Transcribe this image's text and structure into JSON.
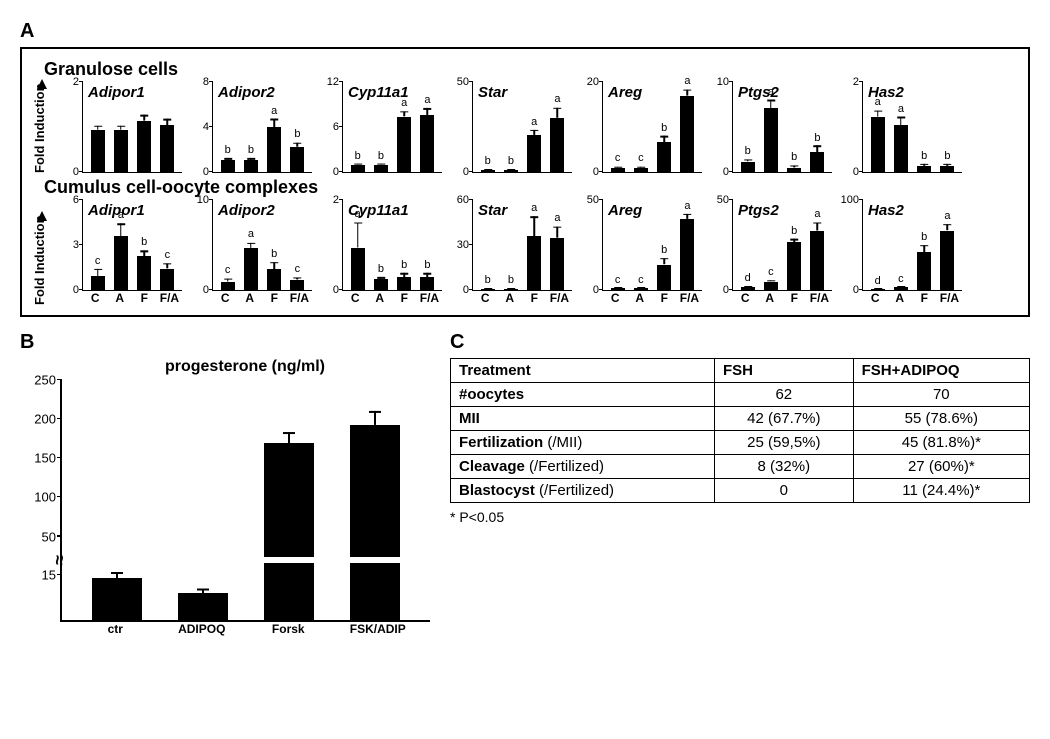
{
  "colors": {
    "bar": "#000000",
    "border": "#000000",
    "background": "#ffffff",
    "text": "#000000"
  },
  "panelA": {
    "label": "A",
    "ylabel": "Fold Induction",
    "xlabels": [
      "C",
      "A",
      "F",
      "F/A"
    ],
    "sections": [
      {
        "title": "Granulose cells",
        "show_xlabels": false,
        "charts": [
          {
            "title": "Adipor1",
            "ymax": 2,
            "yticks": [
              0,
              2
            ],
            "values": [
              1.0,
              1.0,
              1.2,
              1.1
            ],
            "err": [
              0.1,
              0.1,
              0.15,
              0.15
            ],
            "sig": [
              "",
              "",
              "",
              ""
            ]
          },
          {
            "title": "Adipor2",
            "ymax": 8,
            "yticks": [
              0,
              4,
              8
            ],
            "values": [
              1.1,
              1.1,
              4.2,
              2.4
            ],
            "err": [
              0.2,
              0.2,
              0.8,
              0.4
            ],
            "sig": [
              "b",
              "b",
              "a",
              "b"
            ]
          },
          {
            "title": "Cyp11a1",
            "ymax": 12,
            "yticks": [
              0,
              6,
              12
            ],
            "values": [
              1.0,
              1.0,
              7.8,
              8.0
            ],
            "err": [
              0.2,
              0.2,
              0.8,
              1.0
            ],
            "sig": [
              "b",
              "b",
              "a",
              "a"
            ]
          },
          {
            "title": "Star",
            "ymax": 50,
            "yticks": [
              0,
              50
            ],
            "values": [
              1,
              1,
              22,
              32
            ],
            "err": [
              0.5,
              0.5,
              3,
              6
            ],
            "sig": [
              "b",
              "b",
              "a",
              "a"
            ]
          },
          {
            "title": "Areg",
            "ymax": 20,
            "yticks": [
              0,
              20
            ],
            "values": [
              1,
              1,
              7,
              18
            ],
            "err": [
              0.3,
              0.3,
              1.5,
              1.5
            ],
            "sig": [
              "c",
              "c",
              "b",
              "a"
            ]
          },
          {
            "title": "Ptgs2",
            "ymax": 10,
            "yticks": [
              0,
              10
            ],
            "values": [
              1.2,
              7.5,
              0.5,
              2.3
            ],
            "err": [
              0.3,
              1.0,
              0.3,
              0.8
            ],
            "sig": [
              "b",
              "a",
              "b",
              "b"
            ]
          },
          {
            "title": "Has2",
            "ymax": 2.0,
            "yticks": [
              0.0,
              2.0
            ],
            "values": [
              1.3,
              1.1,
              0.15,
              0.15
            ],
            "err": [
              0.15,
              0.2,
              0.05,
              0.05
            ],
            "sig": [
              "a",
              "a",
              "b",
              "b"
            ]
          }
        ]
      },
      {
        "title": "Cumulus cell-oocyte complexes",
        "show_xlabels": true,
        "charts": [
          {
            "title": "Adipor1",
            "ymax": 6,
            "yticks": [
              0,
              3,
              6
            ],
            "values": [
              1.0,
              3.8,
              2.4,
              1.5
            ],
            "err": [
              0.5,
              0.9,
              0.4,
              0.4
            ],
            "sig": [
              "c",
              "a",
              "b",
              "c"
            ]
          },
          {
            "title": "Adipor2",
            "ymax": 10,
            "yticks": [
              0,
              10
            ],
            "values": [
              1.0,
              5.0,
              2.5,
              1.2
            ],
            "err": [
              0.4,
              0.6,
              0.8,
              0.3
            ],
            "sig": [
              "c",
              "a",
              "b",
              "c"
            ]
          },
          {
            "title": "Cyp11a1",
            "ymax": 2,
            "yticks": [
              0,
              2
            ],
            "values": [
              1.0,
              0.25,
              0.3,
              0.3
            ],
            "err": [
              0.6,
              0.05,
              0.1,
              0.1
            ],
            "sig": [
              "a",
              "b",
              "b",
              "b"
            ]
          },
          {
            "title": "Star",
            "ymax": 60,
            "yticks": [
              0,
              30,
              60
            ],
            "values": [
              1,
              1,
              38,
              37
            ],
            "err": [
              0.3,
              0.3,
              14,
              8
            ],
            "sig": [
              "b",
              "b",
              "a",
              "a"
            ]
          },
          {
            "title": "Areg",
            "ymax": 50,
            "yticks": [
              0,
              50
            ],
            "values": [
              1,
              1,
              15,
              42
            ],
            "err": [
              0.3,
              0.3,
              4,
              3
            ],
            "sig": [
              "c",
              "c",
              "b",
              "a"
            ]
          },
          {
            "title": "Ptgs2",
            "ymax": 50,
            "yticks": [
              0,
              50
            ],
            "values": [
              2,
              5,
              28,
              35
            ],
            "err": [
              0.5,
              1,
              2,
              5
            ],
            "sig": [
              "d",
              "c",
              "b",
              "a"
            ]
          },
          {
            "title": "Has2",
            "ymax": 100,
            "yticks": [
              0,
              100
            ],
            "values": [
              1,
              3,
              45,
              70
            ],
            "err": [
              0.5,
              1,
              8,
              8
            ],
            "sig": [
              "d",
              "c",
              "b",
              "a"
            ]
          }
        ]
      }
    ]
  },
  "panelB": {
    "label": "B",
    "title": "progesterone (ng/ml)",
    "xlabels": [
      "ctr",
      "ADIPOQ",
      "Forsk",
      "FSK/ADIP"
    ],
    "yticks_upper": [
      50,
      100,
      150,
      200,
      250
    ],
    "yticks_lower": [
      15
    ],
    "break_at": 20,
    "values": [
      14,
      9,
      170,
      192
    ],
    "err": [
      2,
      1.5,
      14,
      18
    ],
    "bar_color": "#000000"
  },
  "panelC": {
    "label": "C",
    "columns": [
      "Treatment",
      "FSH",
      "FSH+ADIPOQ"
    ],
    "rows": [
      {
        "label": "#oocytes",
        "sub": "",
        "fsh": "62",
        "fsha": "70"
      },
      {
        "label": "MII",
        "sub": "",
        "fsh": "42 (67.7%)",
        "fsha": "55 (78.6%)"
      },
      {
        "label": "Fertilization",
        "sub": " (/MII)",
        "fsh": "25 (59,5%)",
        "fsha": "45 (81.8%)*"
      },
      {
        "label": "Cleavage",
        "sub": " (/Fertilized)",
        "fsh": "8 (32%)",
        "fsha": "27 (60%)*"
      },
      {
        "label": "Blastocyst",
        "sub": " (/Fertilized)",
        "fsh": "0",
        "fsha": "11 (24.4%)*"
      }
    ],
    "footnote": "* P<0.05"
  }
}
